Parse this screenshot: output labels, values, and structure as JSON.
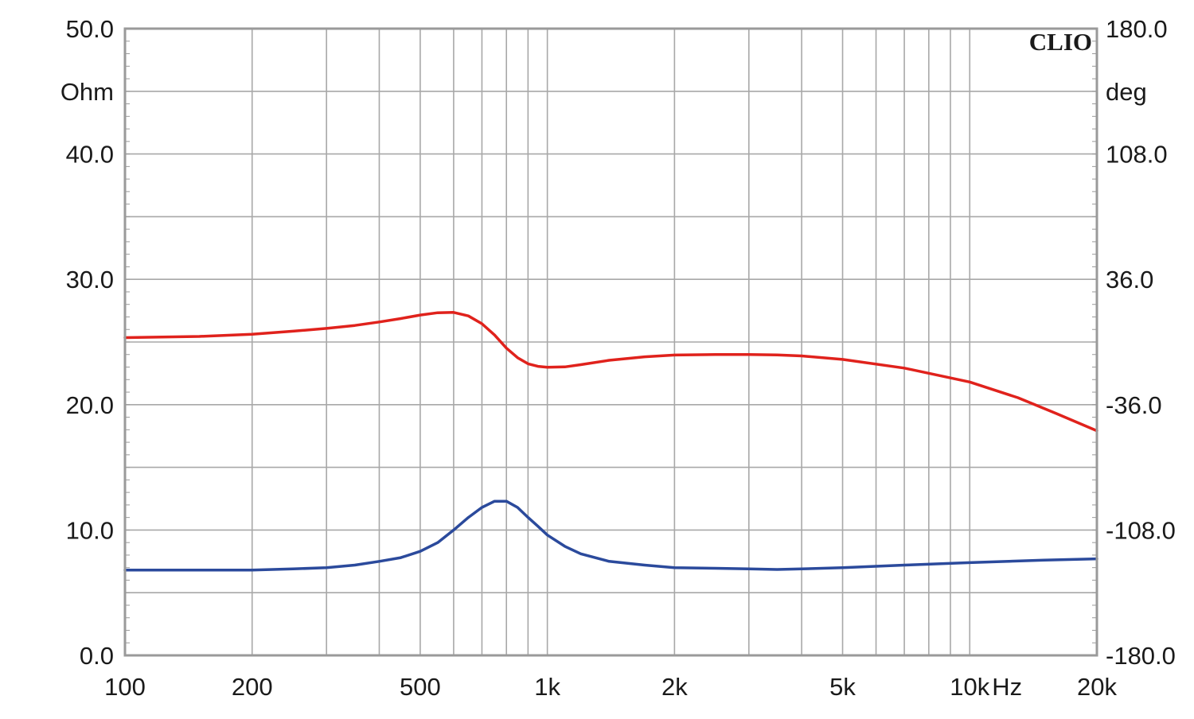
{
  "chart_data": {
    "type": "line",
    "brand": "CLIO",
    "x_axis": {
      "scale": "log",
      "range": [
        100,
        20000
      ],
      "unit": "Hz",
      "tick_labels": [
        {
          "value": 100,
          "label": "100"
        },
        {
          "value": 200,
          "label": "200"
        },
        {
          "value": 500,
          "label": "500"
        },
        {
          "value": 1000,
          "label": "1k"
        },
        {
          "value": 2000,
          "label": "2k"
        },
        {
          "value": 5000,
          "label": "5k"
        },
        {
          "value": 10000,
          "label": "10k"
        },
        {
          "value": 20000,
          "label": "20k"
        }
      ]
    },
    "y_left": {
      "label": "Ohm",
      "range": [
        0,
        50
      ],
      "tick_labels": [
        {
          "value": 0,
          "label": "0.0"
        },
        {
          "value": 10,
          "label": "10.0"
        },
        {
          "value": 20,
          "label": "20.0"
        },
        {
          "value": 30,
          "label": "30.0"
        },
        {
          "value": 40,
          "label": "40.0"
        },
        {
          "value": 50,
          "label": "50.0"
        }
      ]
    },
    "y_right": {
      "label": "deg",
      "range": [
        -180,
        180
      ],
      "tick_labels": [
        {
          "value": -180,
          "label": "-180.0"
        },
        {
          "value": -108,
          "label": "-108.0"
        },
        {
          "value": -36,
          "label": "-36.0"
        },
        {
          "value": 36,
          "label": "36.0"
        },
        {
          "value": 108,
          "label": "108.0"
        },
        {
          "value": 180,
          "label": "180.0"
        }
      ]
    },
    "grid": true,
    "series": [
      {
        "axis": "left",
        "color": "#2b4a9c",
        "points": [
          [
            100,
            6.8
          ],
          [
            150,
            6.8
          ],
          [
            200,
            6.8
          ],
          [
            250,
            6.9
          ],
          [
            300,
            7.0
          ],
          [
            350,
            7.2
          ],
          [
            400,
            7.5
          ],
          [
            450,
            7.8
          ],
          [
            500,
            8.3
          ],
          [
            550,
            9.0
          ],
          [
            600,
            10.0
          ],
          [
            650,
            11.0
          ],
          [
            700,
            11.8
          ],
          [
            750,
            12.3
          ],
          [
            800,
            12.3
          ],
          [
            850,
            11.8
          ],
          [
            900,
            11.0
          ],
          [
            950,
            10.3
          ],
          [
            1000,
            9.6
          ],
          [
            1100,
            8.7
          ],
          [
            1200,
            8.1
          ],
          [
            1400,
            7.5
          ],
          [
            1700,
            7.2
          ],
          [
            2000,
            7.0
          ],
          [
            2500,
            6.95
          ],
          [
            3000,
            6.9
          ],
          [
            3500,
            6.85
          ],
          [
            4000,
            6.9
          ],
          [
            5000,
            7.0
          ],
          [
            7000,
            7.2
          ],
          [
            10000,
            7.4
          ],
          [
            15000,
            7.6
          ],
          [
            20000,
            7.7
          ]
        ]
      },
      {
        "axis": "right",
        "color": "#e0221c",
        "points": [
          [
            100,
            2.5
          ],
          [
            150,
            3.2
          ],
          [
            200,
            4.5
          ],
          [
            250,
            6.2
          ],
          [
            300,
            7.8
          ],
          [
            350,
            9.5
          ],
          [
            400,
            11.5
          ],
          [
            450,
            13.5
          ],
          [
            500,
            15.5
          ],
          [
            550,
            16.8
          ],
          [
            600,
            17.0
          ],
          [
            650,
            15.0
          ],
          [
            700,
            10.5
          ],
          [
            750,
            4.0
          ],
          [
            800,
            -3.5
          ],
          [
            850,
            -9.0
          ],
          [
            900,
            -12.5
          ],
          [
            950,
            -14.0
          ],
          [
            1000,
            -14.5
          ],
          [
            1100,
            -14.3
          ],
          [
            1200,
            -13.0
          ],
          [
            1400,
            -10.5
          ],
          [
            1700,
            -8.5
          ],
          [
            2000,
            -7.5
          ],
          [
            2500,
            -7.2
          ],
          [
            3000,
            -7.2
          ],
          [
            3500,
            -7.4
          ],
          [
            4000,
            -8.0
          ],
          [
            5000,
            -10.0
          ],
          [
            7000,
            -15.0
          ],
          [
            10000,
            -23.0
          ],
          [
            13000,
            -32.0
          ],
          [
            16000,
            -41.0
          ],
          [
            20000,
            -51.0
          ]
        ]
      }
    ]
  }
}
